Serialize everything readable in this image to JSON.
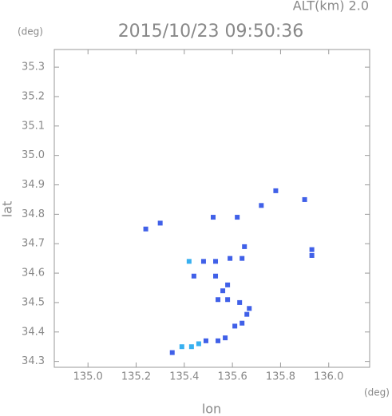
{
  "chart_data": {
    "type": "scatter",
    "title": "2015/10/23 09:50:36",
    "subtitle": "ALT(km) 2.0",
    "y_unit": "(deg)",
    "x_unit": "(deg)",
    "xlabel": "lon",
    "ylabel": "lat",
    "xlim": [
      134.86,
      136.17
    ],
    "ylim": [
      34.28,
      35.36
    ],
    "xticks": [
      {
        "value": 135,
        "label": "135.0"
      },
      135.2,
      135.4,
      135.6,
      135.8,
      {
        "value": 136,
        "label": "136.0"
      }
    ],
    "yticks": [
      34.3,
      34.4,
      34.5,
      34.6,
      34.7,
      34.8,
      34.9,
      {
        "value": 35,
        "label": "35.0"
      },
      35.1,
      35.2,
      35.3
    ],
    "series": [
      {
        "color": "#4060e8",
        "x": [
          135.78,
          135.9,
          135.62,
          135.72,
          135.52,
          135.24,
          135.3,
          135.65,
          135.93,
          135.93,
          135.48,
          135.53,
          135.59,
          135.64,
          135.44,
          135.53,
          135.58,
          135.56,
          135.54,
          135.58,
          135.63,
          135.67,
          135.66,
          135.64,
          135.61,
          135.57,
          135.54,
          135.49,
          135.35
        ],
        "y": [
          34.88,
          34.85,
          34.79,
          34.83,
          34.79,
          34.75,
          34.77,
          34.69,
          34.68,
          34.66,
          34.64,
          34.64,
          34.65,
          34.65,
          34.59,
          34.59,
          34.56,
          34.54,
          34.51,
          34.51,
          34.5,
          34.48,
          34.46,
          34.43,
          34.42,
          34.38,
          34.37,
          34.37,
          34.33
        ]
      },
      {
        "color": "#38b0f0",
        "x": [
          135.42,
          135.46,
          135.43,
          135.39
        ],
        "y": [
          34.64,
          34.36,
          34.35,
          34.35
        ]
      }
    ]
  }
}
